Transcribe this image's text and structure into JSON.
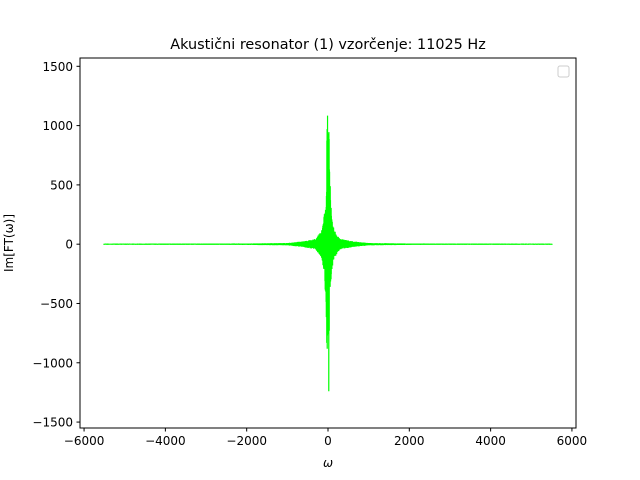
{
  "chart_data": {
    "type": "line",
    "title": "Akustični resonator (1) vzorčenje: 11025 Hz",
    "xlabel": "ω",
    "ylabel": "Im[FT(ω)]",
    "xlim": [
      -6100,
      6100
    ],
    "ylim": [
      -1550,
      1570
    ],
    "xticks": [
      -6000,
      -4000,
      -2000,
      0,
      2000,
      4000,
      6000
    ],
    "xtick_labels": [
      "−6000",
      "−4000",
      "−2000",
      "0",
      "2000",
      "4000",
      "6000"
    ],
    "yticks": [
      -1500,
      -1000,
      -500,
      0,
      500,
      1000,
      1500
    ],
    "ytick_labels": [
      "−1500",
      "−1000",
      "−500",
      "0",
      "500",
      "1000",
      "1500"
    ],
    "grid": false,
    "legend": {
      "placement": "top-right",
      "entries": []
    },
    "series": [
      {
        "color": "#00ff00",
        "x_range": [
          -5512,
          5512
        ],
        "envelope": [
          {
            "x": -5512,
            "ymin": -5,
            "ymax": 5
          },
          {
            "x": -2000,
            "ymin": -6,
            "ymax": 6
          },
          {
            "x": -1000,
            "ymin": -10,
            "ymax": 10
          },
          {
            "x": -600,
            "ymin": -25,
            "ymax": 25
          },
          {
            "x": -300,
            "ymin": -45,
            "ymax": 45
          },
          {
            "x": -150,
            "ymin": -120,
            "ymax": 120
          },
          {
            "x": -80,
            "ymin": -280,
            "ymax": 300
          },
          {
            "x": -40,
            "ymin": -650,
            "ymax": 400
          },
          {
            "x": -15,
            "ymin": -1420,
            "ymax": 1430
          },
          {
            "x": 0,
            "ymin": -200,
            "ymax": 250
          },
          {
            "x": 15,
            "ymin": -1420,
            "ymax": 1430
          },
          {
            "x": 40,
            "ymin": -400,
            "ymax": 650
          },
          {
            "x": 80,
            "ymin": -300,
            "ymax": 280
          },
          {
            "x": 150,
            "ymin": -120,
            "ymax": 120
          },
          {
            "x": 300,
            "ymin": -45,
            "ymax": 45
          },
          {
            "x": 600,
            "ymin": -25,
            "ymax": 25
          },
          {
            "x": 1000,
            "ymin": -10,
            "ymax": 10
          },
          {
            "x": 2000,
            "ymin": -6,
            "ymax": 6
          },
          {
            "x": 5512,
            "ymin": -5,
            "ymax": 5
          }
        ]
      }
    ]
  }
}
